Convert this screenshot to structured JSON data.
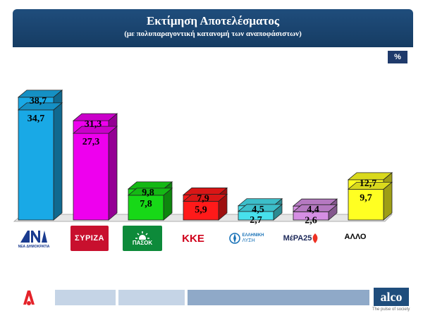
{
  "header": {
    "title": "Εκτίμηση Αποτελέσματος",
    "subtitle": "(με πολυπαραγοντική κατανομή των αναποφάσιστων)"
  },
  "unit_label": "%",
  "chart_data": {
    "type": "bar",
    "stacked": true,
    "style": "3d",
    "categories": [
      "ΝΔ",
      "ΣΥΡΙΖΑ",
      "ΠΑΣΟΚ",
      "ΚΚΕ",
      "ΕΛΛΗΝΙΚΗ ΛΥΣΗ",
      "ΜέΡΑ25",
      "ΑΛΛΟ"
    ],
    "colors": [
      "#19a9e6",
      "#ee00ee",
      "#17d817",
      "#ff1a1a",
      "#47e0ec",
      "#d58ee3",
      "#ffff22"
    ],
    "value_labels": [
      "34,7",
      "27,3",
      "7,8",
      "5,9",
      "2,7",
      "2,6",
      "9,7"
    ],
    "total_labels": [
      "38,7",
      "31,3",
      "9,8",
      "7,9",
      "4,5",
      "4,4",
      "12,7"
    ],
    "values": [
      34.7,
      27.3,
      7.8,
      5.9,
      2.7,
      2.6,
      9.7
    ],
    "totals": [
      38.7,
      31.3,
      9.8,
      7.9,
      4.5,
      4.4,
      12.7
    ],
    "ylim": [
      0,
      40
    ]
  },
  "logos": {
    "nd_text": "ΝΔ",
    "nd_sub": "ΝΕΑ ΔΗΜΟΚΡΑΤΙΑ",
    "syriza_text": "ΣΥΡΙΖΑ",
    "pasok_text": "ΠΑΣΟΚ",
    "kke_text": "ΚΚΕ",
    "el_line1": "ΕΛΛΗΝΙΚΗ",
    "el_line2": "ΛΥΣΗ",
    "mera_text": "ΜέΡΑ25",
    "allo_text": "ΑΛΛΟ"
  },
  "footer": {
    "brand": "alco",
    "tagline": "The pulse of society"
  }
}
